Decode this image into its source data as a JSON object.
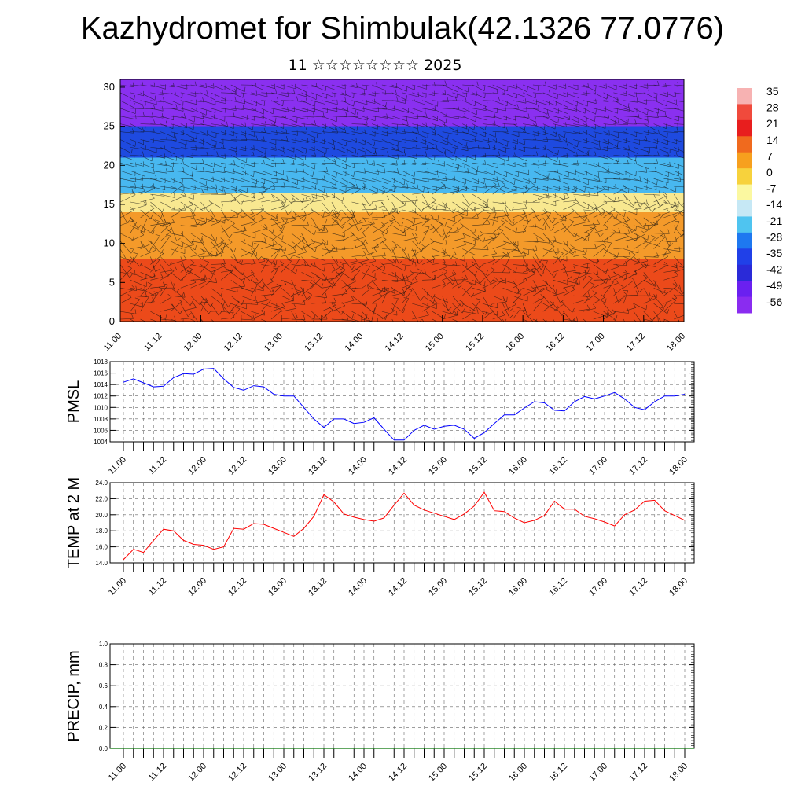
{
  "header": {
    "title": "Kazhydromet for Shimbulak(42.1326 77.0776)",
    "subtitle": "11 ☆☆☆☆☆☆☆☆ 2025"
  },
  "chart_data": [
    {
      "type": "heatmap",
      "title": "",
      "y_ticks": [
        "0",
        "5",
        "10",
        "15",
        "20",
        "25",
        "30"
      ],
      "ylim": [
        0,
        31
      ],
      "x_ticks": [
        "11.00",
        "11.12",
        "12.00",
        "12.12",
        "13.00",
        "13.12",
        "14.00",
        "14.12",
        "15.00",
        "15.12",
        "16.00",
        "16.12",
        "17.00",
        "17.12",
        "18.00"
      ],
      "colorbar_labels": [
        "35",
        "28",
        "21",
        "14",
        "7",
        "0",
        "-7",
        "-14",
        "-21",
        "-28",
        "-35",
        "-42",
        "-49",
        "-56"
      ],
      "colorbar_colors": [
        "#f7b2b2",
        "#f04a3c",
        "#e81e1e",
        "#f06a1e",
        "#f7a01e",
        "#f7d23c",
        "#fbf8a0",
        "#c6e8f5",
        "#4fc4f0",
        "#1e78f0",
        "#2040e8",
        "#2a2ad8",
        "#6a20f0",
        "#8a2cf0"
      ],
      "vertical_bands": [
        {
          "from_level": 0,
          "to_level": 8,
          "color": "#ec4a1a"
        },
        {
          "from_level": 8,
          "to_level": 14,
          "color": "#f49a2a"
        },
        {
          "from_level": 14,
          "to_level": 16.5,
          "color": "#f8e890"
        },
        {
          "from_level": 16.5,
          "to_level": 21,
          "color": "#48b8f0"
        },
        {
          "from_level": 21,
          "to_level": 25,
          "color": "#1e4ae0"
        },
        {
          "from_level": 25,
          "to_level": 31,
          "color": "#8a30f0"
        }
      ],
      "overlay": "wind barbs"
    },
    {
      "type": "line",
      "ylabel": "PMSL",
      "y_ticks": [
        "1004",
        "1006",
        "1008",
        "1010",
        "1012",
        "1014",
        "1016",
        "1018"
      ],
      "ylim": [
        1004,
        1018
      ],
      "x_ticks": [
        "11.00",
        "11.12",
        "12.00",
        "12.12",
        "13.00",
        "13.12",
        "14.00",
        "14.12",
        "15.00",
        "15.12",
        "16.00",
        "16.12",
        "17.00",
        "17.12",
        "18.00"
      ],
      "x_step_hours": 3,
      "grid": true,
      "series": [
        {
          "color": "#0000ff",
          "values": [
            1014.4,
            1015.0,
            1014.3,
            1013.6,
            1013.7,
            1015.2,
            1015.9,
            1015.8,
            1016.7,
            1016.8,
            1015.0,
            1013.5,
            1013.0,
            1013.8,
            1013.6,
            1012.3,
            1012.0,
            1012.0,
            1010.0,
            1008.0,
            1006.5,
            1008.0,
            1008.0,
            1007.2,
            1007.4,
            1008.2,
            1006.2,
            1004.3,
            1004.3,
            1006.0,
            1006.9,
            1006.2,
            1006.7,
            1006.9,
            1006.2,
            1004.6,
            1005.6,
            1007.2,
            1008.7,
            1008.7,
            1009.9,
            1011.0,
            1010.8,
            1009.5,
            1009.4,
            1011.0,
            1011.9,
            1011.5,
            1012.0,
            1012.6,
            1011.5,
            1010.0,
            1009.6,
            1011.0,
            1012.0,
            1012.0,
            1012.3
          ]
        }
      ]
    },
    {
      "type": "line",
      "ylabel": "TEMP at 2 M",
      "y_ticks": [
        "14.0",
        "16.0",
        "18.0",
        "20.0",
        "22.0",
        "24.0"
      ],
      "ylim": [
        14,
        24
      ],
      "x_ticks": [
        "11.00",
        "11.12",
        "12.00",
        "12.12",
        "13.00",
        "13.12",
        "14.00",
        "14.12",
        "15.00",
        "15.12",
        "16.00",
        "16.12",
        "17.00",
        "17.12",
        "18.00"
      ],
      "x_step_hours": 3,
      "grid": true,
      "series": [
        {
          "color": "#ff0000",
          "values": [
            14.4,
            15.7,
            15.3,
            16.8,
            18.2,
            18.0,
            16.8,
            16.3,
            16.2,
            15.7,
            16.0,
            18.3,
            18.2,
            18.9,
            18.8,
            18.3,
            17.8,
            17.3,
            18.3,
            19.8,
            22.5,
            21.6,
            20.1,
            19.7,
            19.4,
            19.2,
            19.6,
            21.2,
            22.7,
            21.2,
            20.6,
            20.2,
            19.8,
            19.4,
            20.1,
            21.1,
            22.8,
            20.5,
            20.4,
            19.6,
            19.0,
            19.3,
            19.9,
            21.7,
            20.7,
            20.7,
            19.8,
            19.5,
            19.1,
            18.6,
            20.0,
            20.6,
            21.7,
            21.8,
            20.5,
            19.9,
            19.3
          ]
        }
      ]
    },
    {
      "type": "bar",
      "ylabel": "PRECIP, mm",
      "y_ticks": [
        "0.0",
        "0.2",
        "0.4",
        "0.6",
        "0.8",
        "1.0"
      ],
      "ylim": [
        0,
        1
      ],
      "x_ticks": [
        "11.00",
        "11.12",
        "12.00",
        "12.12",
        "13.00",
        "13.12",
        "14.00",
        "14.12",
        "15.00",
        "15.12",
        "16.00",
        "16.12",
        "17.00",
        "17.12",
        "18.00"
      ],
      "grid": true,
      "values": [],
      "line_color": "#2e8b2e"
    }
  ]
}
